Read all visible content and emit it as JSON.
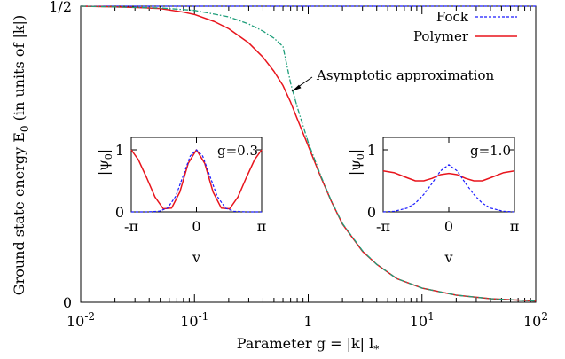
{
  "chart_data": [
    {
      "type": "line",
      "xscale": "log",
      "xlim": [
        0.01,
        100
      ],
      "ylim": [
        0,
        0.5
      ],
      "xlabel": "Parameter g = |k| l_*",
      "ylabel": "Ground state energy E_0 (in units of |k|)",
      "xticks": [
        {
          "value": 0.01,
          "base": "10",
          "exp": "-2"
        },
        {
          "value": 0.1,
          "base": "10",
          "exp": "-1"
        },
        {
          "value": 1,
          "base": "1",
          "exp": ""
        },
        {
          "value": 10,
          "base": "10",
          "exp": "1"
        },
        {
          "value": 100,
          "base": "10",
          "exp": "2"
        }
      ],
      "yticks": [
        {
          "value": 0,
          "label": "0"
        },
        {
          "value": 0.5,
          "label": "1/2"
        }
      ],
      "legend_position": "top-right",
      "series": [
        {
          "name": "Fock",
          "color": "#1a1aff",
          "dash": "dashed",
          "x": [
            0.01,
            0.1,
            1,
            10,
            100
          ],
          "y": [
            0.5,
            0.5,
            0.5,
            0.5,
            0.5
          ]
        },
        {
          "name": "Polymer",
          "color": "#e8141c",
          "dash": "solid",
          "x": [
            0.01,
            0.03,
            0.05,
            0.08,
            0.1,
            0.15,
            0.2,
            0.3,
            0.4,
            0.5,
            0.6,
            0.7,
            0.8,
            1,
            1.3,
            1.6,
            2,
            3,
            4,
            6,
            10,
            20,
            40,
            100
          ],
          "y": [
            0.5,
            0.498,
            0.496,
            0.49,
            0.486,
            0.474,
            0.462,
            0.438,
            0.414,
            0.39,
            0.366,
            0.338,
            0.31,
            0.264,
            0.21,
            0.17,
            0.132,
            0.086,
            0.064,
            0.04,
            0.024,
            0.012,
            0.006,
            0.002
          ]
        },
        {
          "name": "",
          "color": "#1e9e7a",
          "dash": "dashdot",
          "x": [
            0.01,
            0.05,
            0.1,
            0.2,
            0.3,
            0.4,
            0.5,
            0.6,
            0.7,
            0.8,
            1,
            1.3,
            1.6,
            2,
            3,
            4,
            6,
            10,
            20,
            40,
            100
          ],
          "y": [
            0.5,
            0.497,
            0.493,
            0.482,
            0.47,
            0.458,
            0.446,
            0.432,
            0.37,
            0.33,
            0.27,
            0.212,
            0.171,
            0.133,
            0.087,
            0.064,
            0.04,
            0.024,
            0.012,
            0.006,
            0.002
          ]
        }
      ],
      "annotations": [
        "Asymptotic approximation"
      ]
    },
    {
      "type": "line",
      "title": "g=0.3",
      "xlabel": "v",
      "ylabel": "|ψ_0|",
      "xlim": [
        -3.1416,
        3.1416
      ],
      "ylim": [
        0,
        1.2
      ],
      "xticks": [
        {
          "value": -3.1416,
          "label": "-π"
        },
        {
          "value": 0,
          "label": "0"
        },
        {
          "value": 3.1416,
          "label": "π"
        }
      ],
      "yticks": [
        {
          "value": 0,
          "label": "0"
        },
        {
          "value": 1,
          "label": "1"
        }
      ],
      "series": [
        {
          "name": "Polymer",
          "color": "#e8141c",
          "dash": "solid",
          "x": [
            -3.1416,
            -2.8,
            -2.4,
            -2,
            -1.6,
            -1.2,
            -0.8,
            -0.4,
            0,
            0.4,
            0.8,
            1.2,
            1.6,
            2,
            2.4,
            2.8,
            3.1416
          ],
          "y": [
            1.0,
            0.84,
            0.55,
            0.24,
            0.05,
            0.06,
            0.32,
            0.78,
            1.0,
            0.78,
            0.32,
            0.06,
            0.05,
            0.24,
            0.55,
            0.84,
            1.0
          ]
        },
        {
          "name": "Fock",
          "color": "#1a1aff",
          "dash": "dashed",
          "x": [
            -3.1416,
            -2.4,
            -1.8,
            -1.4,
            -1.0,
            -0.6,
            -0.3,
            0,
            0.3,
            0.6,
            1.0,
            1.4,
            1.8,
            2.4,
            3.1416
          ],
          "y": [
            0.0,
            0.0,
            0.01,
            0.06,
            0.25,
            0.62,
            0.9,
            1.0,
            0.9,
            0.62,
            0.25,
            0.06,
            0.01,
            0.0,
            0.0
          ]
        }
      ]
    },
    {
      "type": "line",
      "title": "g=1.0",
      "xlabel": "v",
      "ylabel": "|ψ_0|",
      "xlim": [
        -3.1416,
        3.1416
      ],
      "ylim": [
        0,
        1.2
      ],
      "xticks": [
        {
          "value": -3.1416,
          "label": "-π"
        },
        {
          "value": 0,
          "label": "0"
        },
        {
          "value": 3.1416,
          "label": "π"
        }
      ],
      "yticks": [
        {
          "value": 0,
          "label": "0"
        },
        {
          "value": 1,
          "label": "1"
        }
      ],
      "series": [
        {
          "name": "Polymer",
          "color": "#e8141c",
          "dash": "solid",
          "x": [
            -3.1416,
            -2.6,
            -2.0,
            -1.6,
            -1.2,
            -0.8,
            -0.4,
            0,
            0.4,
            0.8,
            1.2,
            1.6,
            2.0,
            2.6,
            3.1416
          ],
          "y": [
            0.66,
            0.63,
            0.55,
            0.5,
            0.5,
            0.54,
            0.6,
            0.62,
            0.6,
            0.54,
            0.5,
            0.5,
            0.55,
            0.63,
            0.66
          ]
        },
        {
          "name": "Fock",
          "color": "#1a1aff",
          "dash": "dashed",
          "x": [
            -3.1416,
            -2.6,
            -2.0,
            -1.6,
            -1.2,
            -0.8,
            -0.4,
            0,
            0.4,
            0.8,
            1.2,
            1.6,
            2.0,
            2.6,
            3.1416
          ],
          "y": [
            0.0,
            0.01,
            0.06,
            0.14,
            0.28,
            0.46,
            0.66,
            0.76,
            0.66,
            0.46,
            0.28,
            0.14,
            0.06,
            0.01,
            0.0
          ]
        }
      ]
    }
  ]
}
